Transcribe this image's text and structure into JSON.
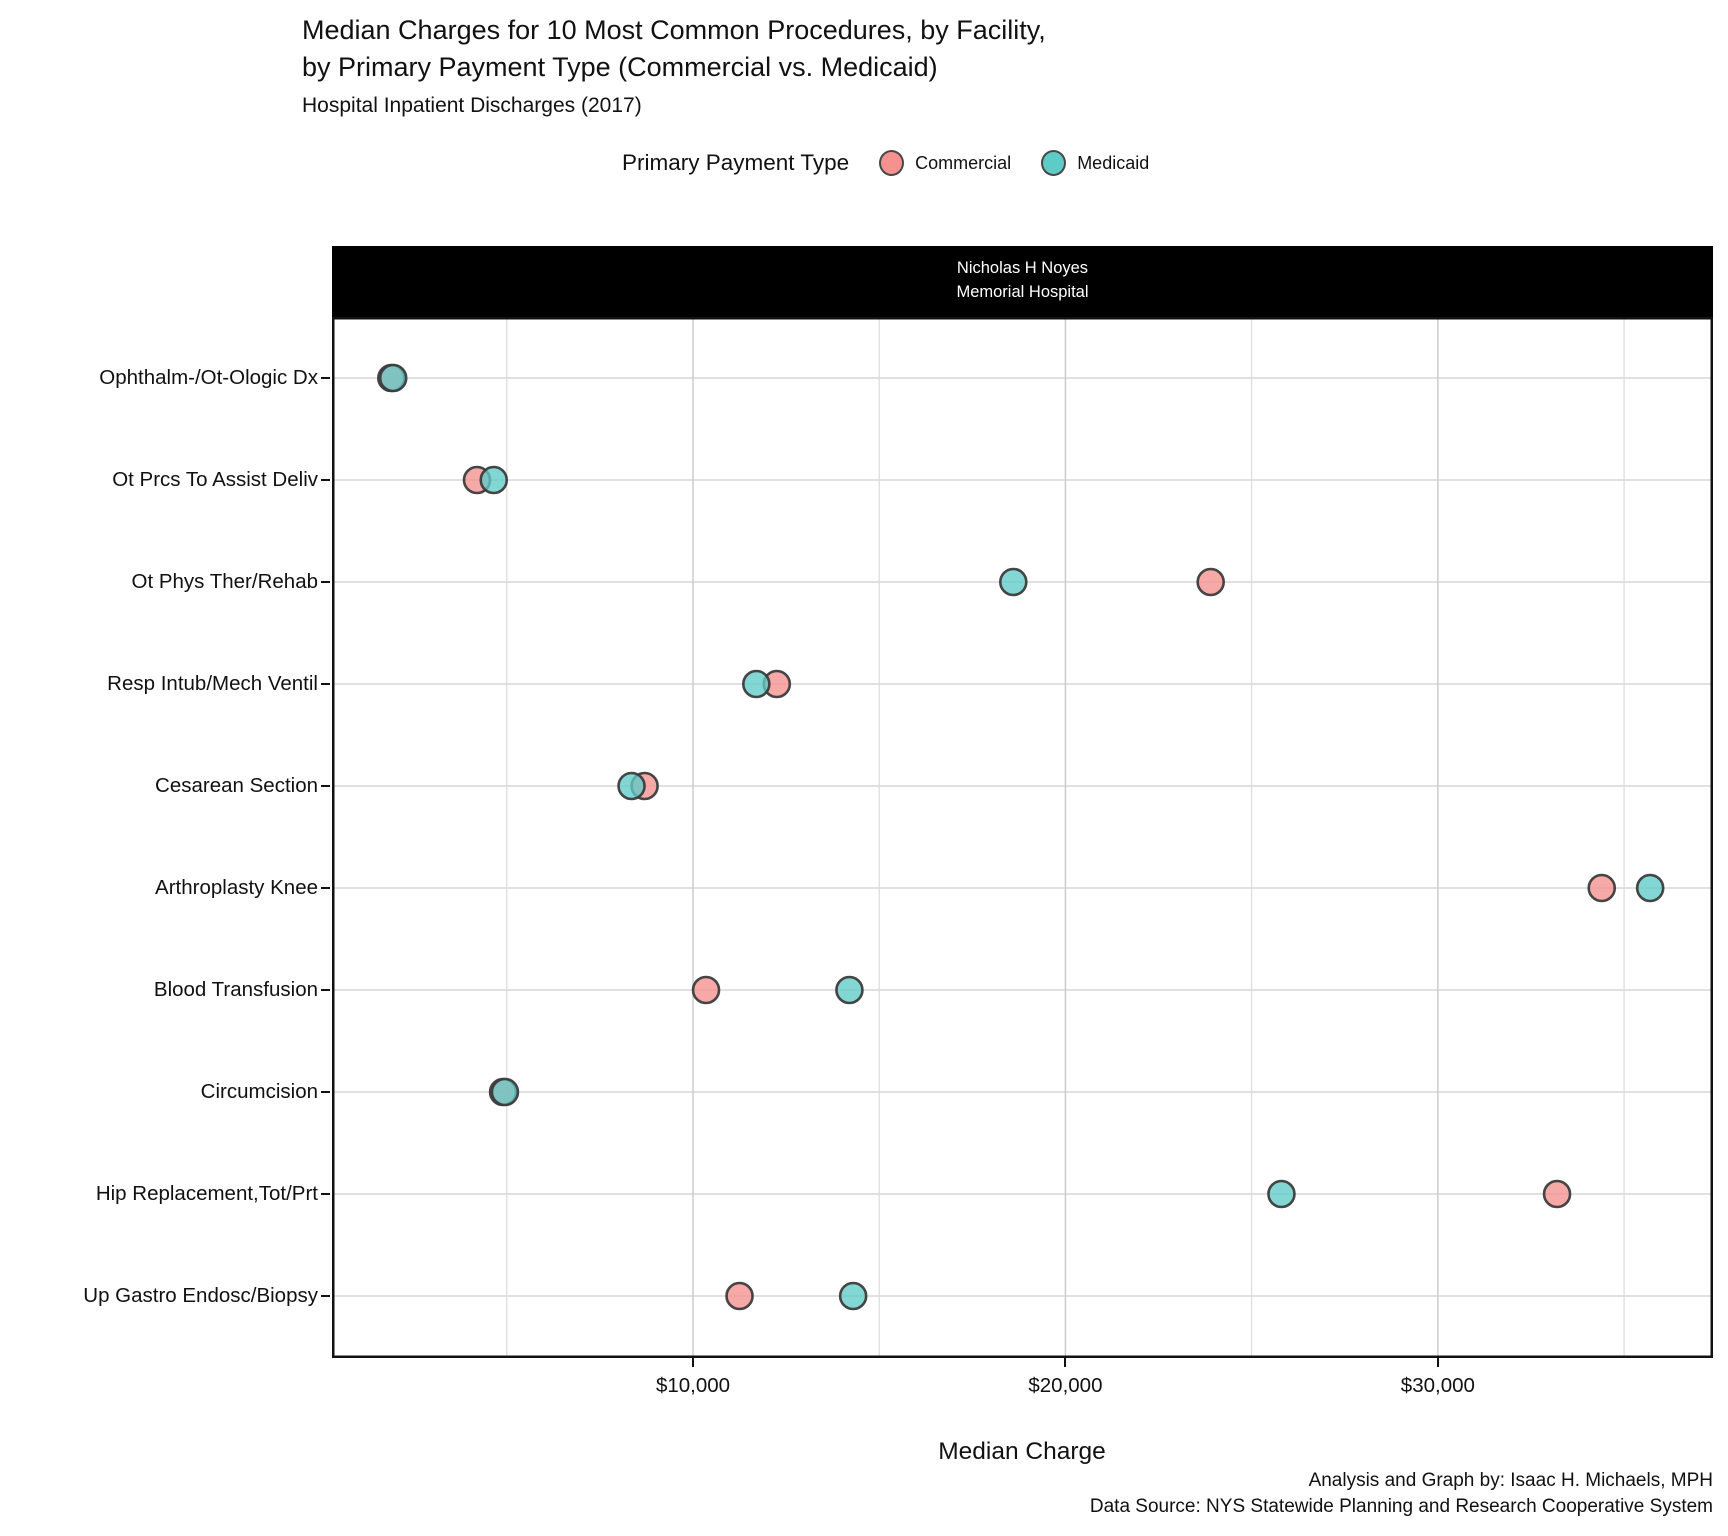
{
  "title": {
    "line1": "Median Charges for 10 Most Common Procedures, by Facility,",
    "line2": "by Primary Payment Type (Commercial vs. Medicaid)"
  },
  "subtitle": "Hospital Inpatient Discharges (2017)",
  "legend": {
    "title": "Primary Payment Type",
    "items": [
      {
        "label": "Commercial",
        "color": "#F5918E"
      },
      {
        "label": "Medicaid",
        "color": "#5FCBC6"
      }
    ]
  },
  "facet": {
    "line1": "Nicholas H Noyes",
    "line2": "Memorial Hospital"
  },
  "chart_data": {
    "type": "scatter",
    "title": "Median Charges for 10 Most Common Procedures, by Facility, by Primary Payment Type (Commercial vs. Medicaid)",
    "subtitle": "Hospital Inpatient Discharges (2017)",
    "facet_label": "Nicholas H Noyes Memorial Hospital",
    "xlabel": "Median Charge",
    "ylabel": "",
    "legend_position": "top",
    "grid": true,
    "categories": [
      "Ophthalm-/Ot-Ologic Dx",
      "Ot Prcs To Assist Deliv",
      "Ot Phys Ther/Rehab",
      "Resp Intub/Mech Ventil",
      "Cesarean Section",
      "Arthroplasty Knee",
      "Blood Transfusion",
      "Circumcision",
      "Hip Replacement,Tot/Prt",
      "Up Gastro Endosc/Biopsy"
    ],
    "series": [
      {
        "name": "Commercial",
        "color": "#F5918E",
        "values": [
          1900,
          4200,
          23900,
          12250,
          8700,
          34400,
          10350,
          4900,
          33200,
          11250
        ]
      },
      {
        "name": "Medicaid",
        "color": "#5FCBC6",
        "values": [
          1950,
          4650,
          18600,
          11700,
          8350,
          35700,
          14200,
          4950,
          25800,
          14300
        ]
      }
    ],
    "xlim": [
      300,
      37400
    ],
    "x_ticks": [
      {
        "value": 10000,
        "label": "$10,000"
      },
      {
        "value": 20000,
        "label": "$20,000"
      },
      {
        "value": 30000,
        "label": "$30,000"
      }
    ],
    "x_gridlines_major": [
      10000,
      20000,
      30000
    ],
    "x_gridlines_minor": [
      5000,
      15000,
      25000,
      35000
    ]
  },
  "caption": {
    "line1": "Analysis and Graph by: Isaac H. Michaels, MPH",
    "line2": "Data Source: NYS Statewide Planning and Research Cooperative System"
  }
}
